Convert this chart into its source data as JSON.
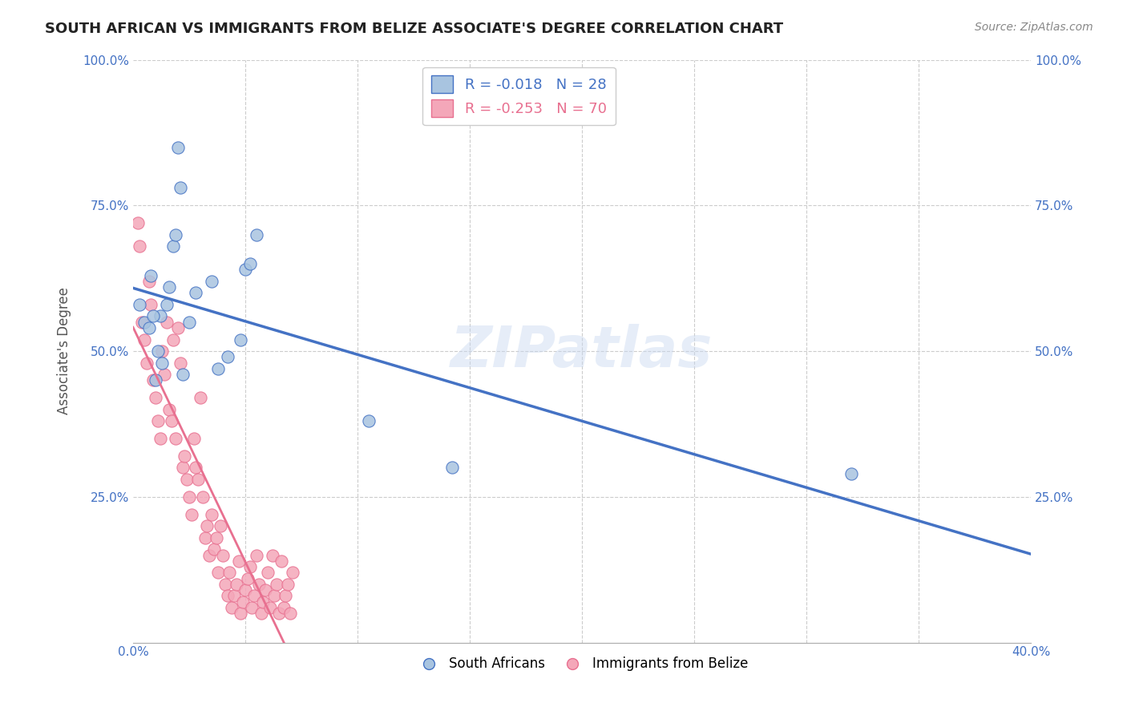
{
  "title": "SOUTH AFRICAN VS IMMIGRANTS FROM BELIZE ASSOCIATE'S DEGREE CORRELATION CHART",
  "source": "Source: ZipAtlas.com",
  "ylabel": "Associate's Degree",
  "xlim": [
    0.0,
    40.0
  ],
  "ylim": [
    0.0,
    100.0
  ],
  "color_blue": "#a8c4e0",
  "color_pink": "#f4a7b9",
  "line_blue": "#4472c4",
  "line_pink_edge": "#e87090",
  "watermark": "ZIPatlas",
  "south_africans_x": [
    1.2,
    2.1,
    1.8,
    0.5,
    0.8,
    1.5,
    2.8,
    0.3,
    0.7,
    1.0,
    1.3,
    2.5,
    3.5,
    5.0,
    5.2,
    3.8,
    4.2,
    0.9,
    1.1,
    1.6,
    2.2,
    10.5,
    14.2,
    4.8,
    5.5,
    32.0,
    2.0,
    1.9
  ],
  "south_africans_y": [
    56,
    78,
    68,
    55,
    63,
    58,
    60,
    58,
    54,
    45,
    48,
    55,
    62,
    64,
    65,
    47,
    49,
    56,
    50,
    61,
    46,
    38,
    30,
    52,
    70,
    29,
    85,
    70
  ],
  "belize_x": [
    0.2,
    0.3,
    0.4,
    0.5,
    0.6,
    0.7,
    0.8,
    0.9,
    1.0,
    1.1,
    1.2,
    1.3,
    1.4,
    1.5,
    1.6,
    1.7,
    1.8,
    1.9,
    2.0,
    2.1,
    2.2,
    2.3,
    2.4,
    2.5,
    2.6,
    2.7,
    2.8,
    2.9,
    3.0,
    3.1,
    3.2,
    3.3,
    3.4,
    3.5,
    3.6,
    3.7,
    3.8,
    3.9,
    4.0,
    4.1,
    4.2,
    4.3,
    4.4,
    4.5,
    4.6,
    4.7,
    4.8,
    4.9,
    5.0,
    5.1,
    5.2,
    5.3,
    5.4,
    5.5,
    5.6,
    5.7,
    5.8,
    5.9,
    6.0,
    6.1,
    6.2,
    6.3,
    6.4,
    6.5,
    6.6,
    6.7,
    6.8,
    6.9,
    7.0,
    7.1
  ],
  "belize_y": [
    72,
    68,
    55,
    52,
    48,
    62,
    58,
    45,
    42,
    38,
    35,
    50,
    46,
    55,
    40,
    38,
    52,
    35,
    54,
    48,
    30,
    32,
    28,
    25,
    22,
    35,
    30,
    28,
    42,
    25,
    18,
    20,
    15,
    22,
    16,
    18,
    12,
    20,
    15,
    10,
    8,
    12,
    6,
    8,
    10,
    14,
    5,
    7,
    9,
    11,
    13,
    6,
    8,
    15,
    10,
    5,
    7,
    9,
    12,
    6,
    15,
    8,
    10,
    5,
    14,
    6,
    8,
    10,
    5,
    12
  ]
}
